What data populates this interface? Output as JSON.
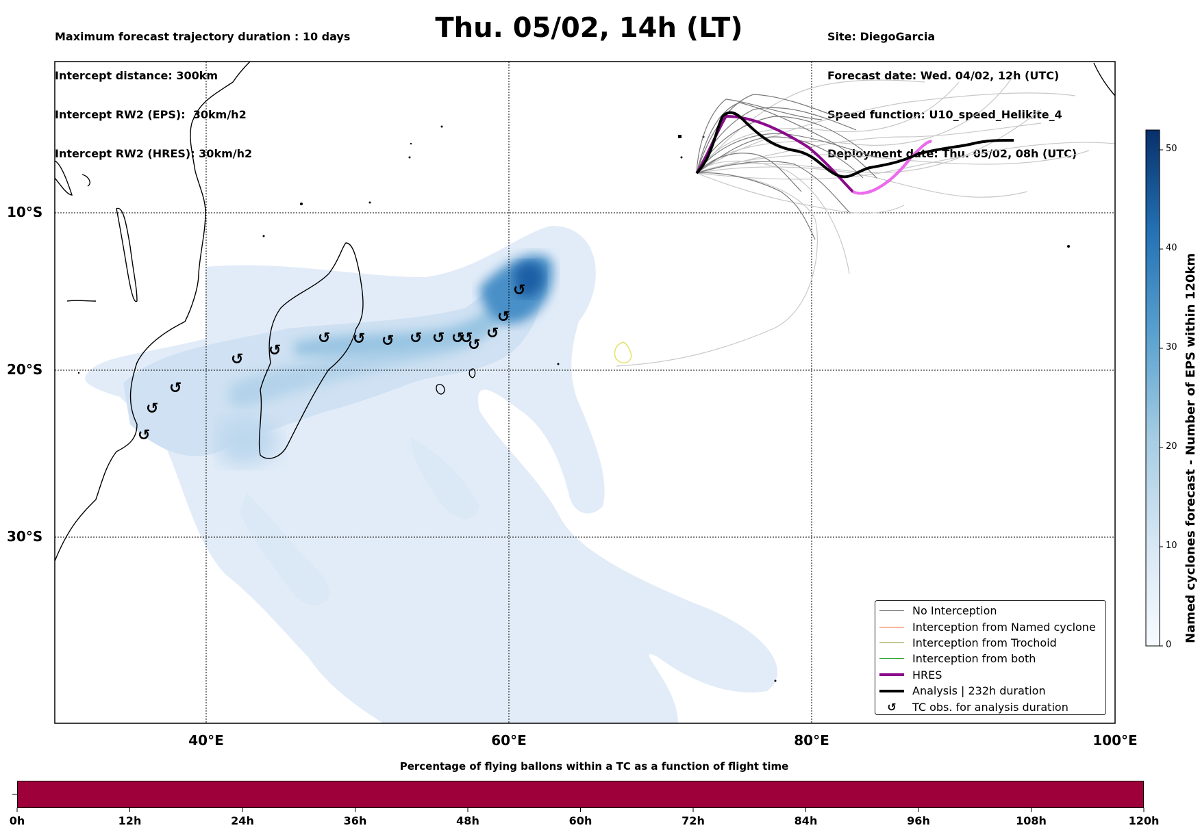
{
  "header": {
    "left_lines": [
      "Maximum forecast trajectory duration : 10 days",
      "Intercept distance: 300km",
      "Intercept RW2 (EPS):  30km/h2",
      "Intercept RW2 (HRES): 30km/h2"
    ],
    "title": "Thu. 05/02, 14h (LT)",
    "right_lines": [
      "Site: DiegoGarcia",
      "Forecast date: Wed. 04/02, 12h (UTC)",
      "Speed function: U10_speed_Helikite_4",
      "Deployment date: Thu. 05/02, 08h (UTC)"
    ]
  },
  "map": {
    "lat_labels": [
      "10°S",
      "20°S",
      "30°S"
    ],
    "lon_labels": [
      "40°E",
      "60°E",
      "80°E",
      "100°E"
    ],
    "tc_obs_icon": "↺",
    "colors": {
      "no_interception": "#6e6e6e",
      "named_cyclone": "#ff5a1e",
      "trochoid": "#8a8a1a",
      "both": "#2ca02c",
      "hres": "#8b0a8b",
      "analysis": "#000000",
      "cyclone_density": "#08519c"
    }
  },
  "legend": {
    "items": [
      {
        "label": "No Interception",
        "kind": "line",
        "color": "#6e6e6e",
        "width": 1.2
      },
      {
        "label": "Interception from Named cyclone",
        "kind": "line",
        "color": "#ff5a1e",
        "width": 1.2
      },
      {
        "label": "Interception from Trochoid",
        "kind": "line",
        "color": "#8a8a1a",
        "width": 1.2
      },
      {
        "label": "Interception from both",
        "kind": "line",
        "color": "#2ca02c",
        "width": 1.2
      },
      {
        "label": "HRES",
        "kind": "line",
        "color": "#8b0a8b",
        "width": 4
      },
      {
        "label": "Analysis | 232h duration",
        "kind": "line",
        "color": "#000000",
        "width": 4
      },
      {
        "label": "TC obs. for analysis duration",
        "kind": "icon",
        "icon": "↺"
      }
    ]
  },
  "colorbar_right": {
    "label": "Named cyclones forecast - Number of EPS within 120km",
    "ticks": [
      "0",
      "10",
      "20",
      "30",
      "40",
      "50"
    ],
    "min": 0,
    "max": 52
  },
  "colorbar_bottom": {
    "title": "Percentage of flying ballons within a TC as a function of flight time",
    "ticks": [
      "0h",
      "12h",
      "24h",
      "36h",
      "48h",
      "60h",
      "72h",
      "84h",
      "96h",
      "108h",
      "120h"
    ],
    "color": "#9e003a"
  }
}
